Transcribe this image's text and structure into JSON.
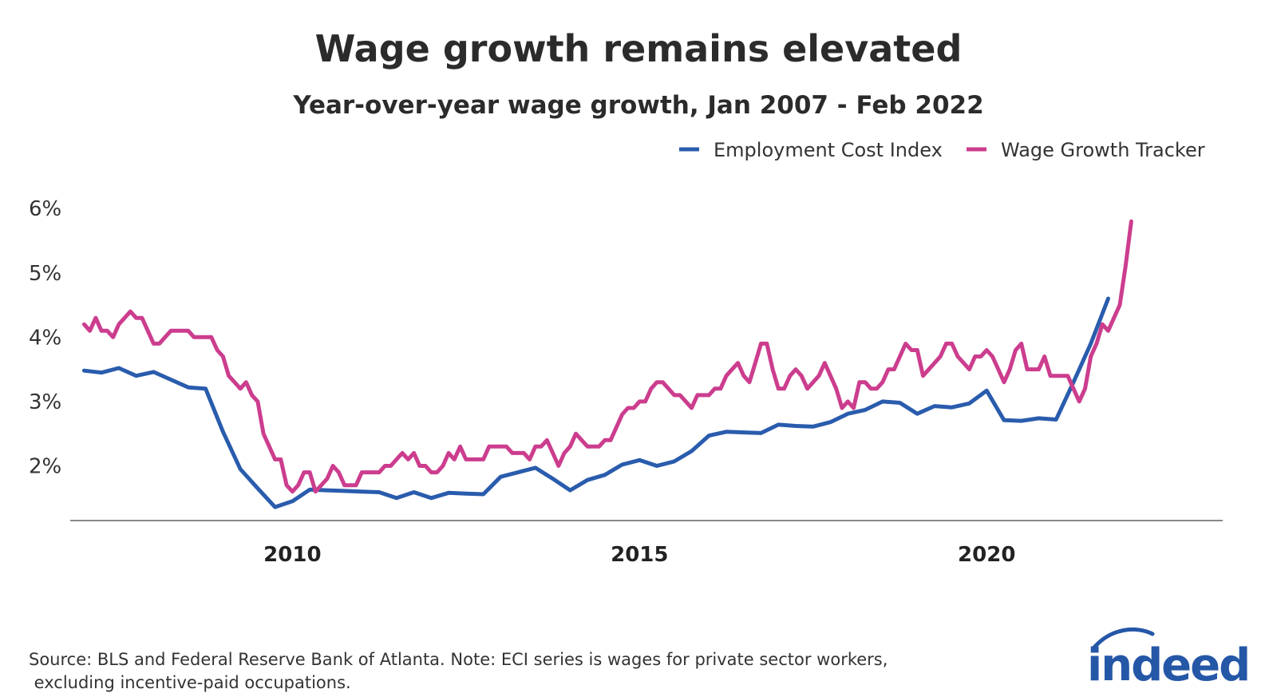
{
  "chart_data": {
    "type": "line",
    "title": "Wage growth remains elevated",
    "subtitle": "Year-over-year wage growth, Jan 2007 - Feb 2022",
    "xlabel": "",
    "ylabel": "",
    "xlim": [
      2006.8,
      2023.4
    ],
    "ylim": [
      1.15,
      6.3
    ],
    "y_ticks": [
      2,
      3,
      4,
      5,
      6
    ],
    "y_tick_labels": [
      "2%",
      "3%",
      "4%",
      "5%",
      "6%"
    ],
    "x_ticks": [
      2010,
      2015,
      2020
    ],
    "x_tick_labels": [
      "2010",
      "2015",
      "2020"
    ],
    "grid": false,
    "legend_position": "top-right",
    "series": [
      {
        "name": "Employment Cost Index",
        "color": "#2a5cad",
        "x": [
          2007.0,
          2007.25,
          2007.5,
          2007.75,
          2008.0,
          2008.25,
          2008.5,
          2008.75,
          2009.0,
          2009.25,
          2009.5,
          2009.75,
          2010.0,
          2010.25,
          2010.5,
          2010.75,
          2011.0,
          2011.25,
          2011.5,
          2011.75,
          2012.0,
          2012.25,
          2012.5,
          2012.75,
          2013.0,
          2013.25,
          2013.5,
          2013.75,
          2014.0,
          2014.25,
          2014.5,
          2014.75,
          2015.0,
          2015.25,
          2015.5,
          2015.75,
          2016.0,
          2016.25,
          2016.5,
          2016.75,
          2017.0,
          2017.25,
          2017.5,
          2017.75,
          2018.0,
          2018.25,
          2018.5,
          2018.75,
          2019.0,
          2019.25,
          2019.5,
          2019.75,
          2020.0,
          2020.25,
          2020.5,
          2020.75,
          2021.0,
          2021.25,
          2021.5,
          2021.75
        ],
        "values": [
          3.48,
          3.45,
          3.52,
          3.4,
          3.46,
          3.34,
          3.22,
          3.2,
          2.53,
          1.95,
          1.65,
          1.36,
          1.45,
          1.63,
          1.62,
          1.61,
          1.6,
          1.59,
          1.5,
          1.59,
          1.5,
          1.58,
          1.57,
          1.56,
          1.83,
          1.9,
          1.97,
          1.8,
          1.62,
          1.78,
          1.86,
          2.02,
          2.09,
          2.0,
          2.07,
          2.23,
          2.47,
          2.53,
          2.52,
          2.51,
          2.64,
          2.62,
          2.61,
          2.68,
          2.81,
          2.87,
          3.0,
          2.98,
          2.81,
          2.93,
          2.91,
          2.97,
          3.17,
          2.71,
          2.7,
          2.74,
          2.72,
          3.3,
          3.9,
          4.6
        ]
      },
      {
        "name": "Wage Growth Tracker",
        "color": "#cc3d8e",
        "x": [
          2007.0,
          2007.083,
          2007.167,
          2007.25,
          2007.333,
          2007.417,
          2007.5,
          2007.583,
          2007.667,
          2007.75,
          2007.833,
          2007.917,
          2008.0,
          2008.083,
          2008.167,
          2008.25,
          2008.333,
          2008.417,
          2008.5,
          2008.583,
          2008.667,
          2008.75,
          2008.833,
          2008.917,
          2009.0,
          2009.083,
          2009.167,
          2009.25,
          2009.333,
          2009.417,
          2009.5,
          2009.583,
          2009.667,
          2009.75,
          2009.833,
          2009.917,
          2010.0,
          2010.083,
          2010.167,
          2010.25,
          2010.333,
          2010.417,
          2010.5,
          2010.583,
          2010.667,
          2010.75,
          2010.833,
          2010.917,
          2011.0,
          2011.083,
          2011.167,
          2011.25,
          2011.333,
          2011.417,
          2011.5,
          2011.583,
          2011.667,
          2011.75,
          2011.833,
          2011.917,
          2012.0,
          2012.083,
          2012.167,
          2012.25,
          2012.333,
          2012.417,
          2012.5,
          2012.583,
          2012.667,
          2012.75,
          2012.833,
          2012.917,
          2013.0,
          2013.083,
          2013.167,
          2013.25,
          2013.333,
          2013.417,
          2013.5,
          2013.583,
          2013.667,
          2013.75,
          2013.833,
          2013.917,
          2014.0,
          2014.083,
          2014.167,
          2014.25,
          2014.333,
          2014.417,
          2014.5,
          2014.583,
          2014.667,
          2014.75,
          2014.833,
          2014.917,
          2015.0,
          2015.083,
          2015.167,
          2015.25,
          2015.333,
          2015.417,
          2015.5,
          2015.583,
          2015.667,
          2015.75,
          2015.833,
          2015.917,
          2016.0,
          2016.083,
          2016.167,
          2016.25,
          2016.333,
          2016.417,
          2016.5,
          2016.583,
          2016.667,
          2016.75,
          2016.833,
          2016.917,
          2017.0,
          2017.083,
          2017.167,
          2017.25,
          2017.333,
          2017.417,
          2017.5,
          2017.583,
          2017.667,
          2017.75,
          2017.833,
          2017.917,
          2018.0,
          2018.083,
          2018.167,
          2018.25,
          2018.333,
          2018.417,
          2018.5,
          2018.583,
          2018.667,
          2018.75,
          2018.833,
          2018.917,
          2019.0,
          2019.083,
          2019.167,
          2019.25,
          2019.333,
          2019.417,
          2019.5,
          2019.583,
          2019.667,
          2019.75,
          2019.833,
          2019.917,
          2020.0,
          2020.083,
          2020.167,
          2020.25,
          2020.333,
          2020.417,
          2020.5,
          2020.583,
          2020.667,
          2020.75,
          2020.833,
          2020.917,
          2021.0,
          2021.083,
          2021.167,
          2021.25,
          2021.333,
          2021.417,
          2021.5,
          2021.583,
          2021.667,
          2021.75,
          2021.833,
          2021.917,
          2022.0,
          2022.083
        ],
        "values": [
          4.2,
          4.1,
          4.3,
          4.1,
          4.1,
          4.0,
          4.2,
          4.3,
          4.4,
          4.3,
          4.3,
          4.1,
          3.9,
          3.9,
          4.0,
          4.1,
          4.1,
          4.1,
          4.1,
          4.0,
          4.0,
          4.0,
          4.0,
          3.8,
          3.7,
          3.4,
          3.3,
          3.2,
          3.3,
          3.1,
          3.0,
          2.5,
          2.3,
          2.1,
          2.1,
          1.7,
          1.6,
          1.7,
          1.9,
          1.9,
          1.6,
          1.7,
          1.8,
          2.0,
          1.9,
          1.7,
          1.7,
          1.7,
          1.9,
          1.9,
          1.9,
          1.9,
          2.0,
          2.0,
          2.1,
          2.2,
          2.1,
          2.2,
          2.0,
          2.0,
          1.9,
          1.9,
          2.0,
          2.2,
          2.1,
          2.3,
          2.1,
          2.1,
          2.1,
          2.1,
          2.3,
          2.3,
          2.3,
          2.3,
          2.2,
          2.2,
          2.2,
          2.1,
          2.3,
          2.3,
          2.4,
          2.2,
          2.0,
          2.2,
          2.3,
          2.5,
          2.4,
          2.3,
          2.3,
          2.3,
          2.4,
          2.4,
          2.6,
          2.8,
          2.9,
          2.9,
          3.0,
          3.0,
          3.2,
          3.3,
          3.3,
          3.2,
          3.1,
          3.1,
          3.0,
          2.9,
          3.1,
          3.1,
          3.1,
          3.2,
          3.2,
          3.4,
          3.5,
          3.6,
          3.4,
          3.3,
          3.6,
          3.9,
          3.9,
          3.5,
          3.2,
          3.2,
          3.4,
          3.5,
          3.4,
          3.2,
          3.3,
          3.4,
          3.6,
          3.4,
          3.2,
          2.9,
          3.0,
          2.9,
          3.3,
          3.3,
          3.2,
          3.2,
          3.3,
          3.5,
          3.5,
          3.7,
          3.9,
          3.8,
          3.8,
          3.4,
          3.5,
          3.6,
          3.7,
          3.9,
          3.9,
          3.7,
          3.6,
          3.5,
          3.7,
          3.7,
          3.8,
          3.7,
          3.5,
          3.3,
          3.5,
          3.8,
          3.9,
          3.5,
          3.5,
          3.5,
          3.7,
          3.4,
          3.4,
          3.4,
          3.4,
          3.2,
          3.0,
          3.2,
          3.7,
          3.9,
          4.2,
          4.1,
          4.3,
          4.5,
          5.1,
          5.8
        ]
      }
    ],
    "source_lines": [
      "Source: BLS and Federal Reserve Bank of Atlanta. Note: ECI series is wages for private sector workers,",
      " excluding incentive-paid occupations."
    ],
    "logo_text": "indeed"
  }
}
